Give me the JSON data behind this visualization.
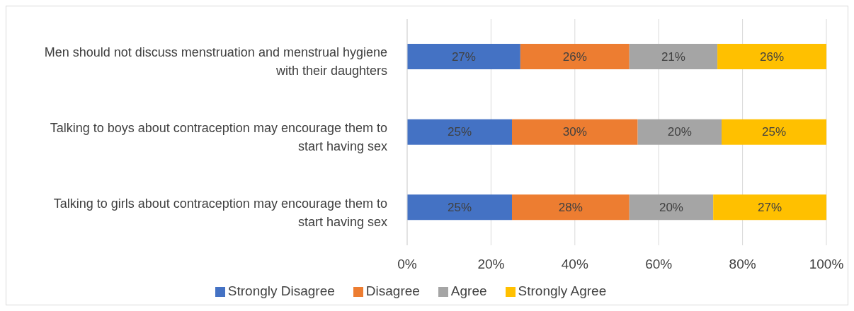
{
  "chart_data": {
    "type": "bar",
    "orientation": "horizontal",
    "stacked": true,
    "categories": [
      "Men should not discuss menstruation and menstrual hygiene with their daughters",
      "Talking to boys about contraception may encourage them to start having sex",
      "Talking to girls about contraception may encourage them to start having sex"
    ],
    "series": [
      {
        "name": "Strongly Disagree",
        "color": "#4472c4",
        "values": [
          27,
          25,
          25
        ],
        "value_labels": [
          "27%",
          "25%",
          "25%"
        ]
      },
      {
        "name": "Disagree",
        "color": "#ed7d31",
        "values": [
          26,
          30,
          28
        ],
        "value_labels": [
          "26%",
          "30%",
          "28%"
        ]
      },
      {
        "name": "Agree",
        "color": "#a5a5a5",
        "values": [
          21,
          20,
          20
        ],
        "value_labels": [
          "21%",
          "20%",
          "20%"
        ]
      },
      {
        "name": "Strongly Agree",
        "color": "#ffc000",
        "values": [
          26,
          25,
          27
        ],
        "value_labels": [
          "26%",
          "25%",
          "27%"
        ]
      }
    ],
    "xlim": [
      0,
      100
    ],
    "xticks": [
      {
        "value": 0,
        "label": "0%"
      },
      {
        "value": 20,
        "label": "20%"
      },
      {
        "value": 40,
        "label": "40%"
      },
      {
        "value": 60,
        "label": "60%"
      },
      {
        "value": 80,
        "label": "80%"
      },
      {
        "value": 100,
        "label": "100%"
      }
    ],
    "grid": "x",
    "legend": "bottom"
  }
}
